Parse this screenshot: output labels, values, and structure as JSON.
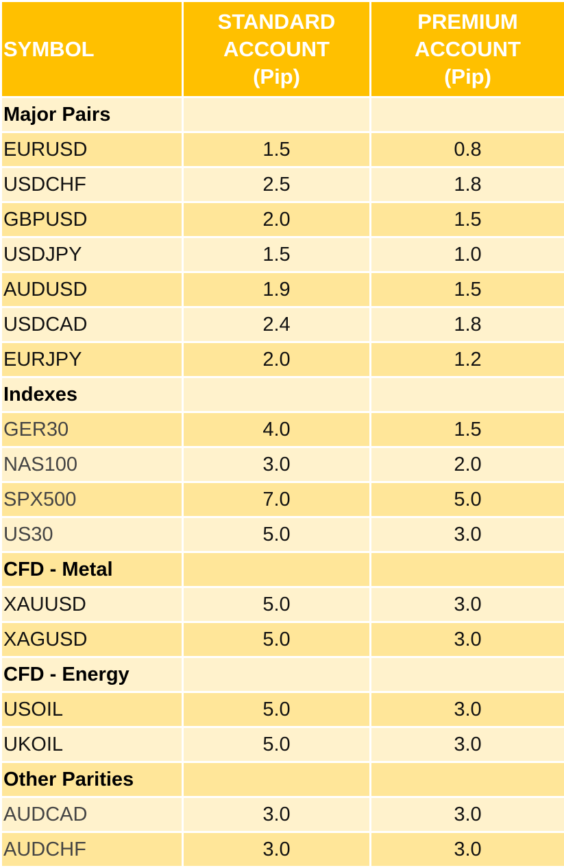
{
  "header": {
    "symbol": "SYMBOL",
    "standard": [
      "STANDARD",
      "ACCOUNT",
      "(Pip)"
    ],
    "premium": [
      "PREMIUM",
      "ACCOUNT",
      "(Pip)"
    ]
  },
  "rows": [
    {
      "type": "group",
      "label": "Major Pairs"
    },
    {
      "type": "item",
      "symbol": "EURUSD",
      "standard": "1.5",
      "premium": "0.8"
    },
    {
      "type": "item",
      "symbol": "USDCHF",
      "standard": "2.5",
      "premium": "1.8"
    },
    {
      "type": "item",
      "symbol": "GBPUSD",
      "standard": "2.0",
      "premium": "1.5"
    },
    {
      "type": "item",
      "symbol": "USDJPY",
      "standard": "1.5",
      "premium": "1.0"
    },
    {
      "type": "item",
      "symbol": "AUDUSD",
      "standard": "1.9",
      "premium": "1.5"
    },
    {
      "type": "item",
      "symbol": "USDCAD",
      "standard": "2.4",
      "premium": "1.8"
    },
    {
      "type": "item",
      "symbol": "EURJPY",
      "standard": "2.0",
      "premium": "1.2"
    },
    {
      "type": "group",
      "label": "Indexes"
    },
    {
      "type": "item",
      "symbol": "GER30",
      "standard": "4.0",
      "premium": "1.5",
      "dim": true
    },
    {
      "type": "item",
      "symbol": "NAS100",
      "standard": "3.0",
      "premium": "2.0",
      "dim": true
    },
    {
      "type": "item",
      "symbol": "SPX500",
      "standard": "7.0",
      "premium": "5.0",
      "dim": true
    },
    {
      "type": "item",
      "symbol": "US30",
      "standard": "5.0",
      "premium": "3.0",
      "dim": true
    },
    {
      "type": "group",
      "label": "CFD - Metal"
    },
    {
      "type": "item",
      "symbol": "XAUUSD",
      "standard": "5.0",
      "premium": "3.0"
    },
    {
      "type": "item",
      "symbol": "XAGUSD",
      "standard": "5.0",
      "premium": "3.0"
    },
    {
      "type": "group",
      "label": "CFD - Energy"
    },
    {
      "type": "item",
      "symbol": "USOIL",
      "standard": "5.0",
      "premium": "3.0"
    },
    {
      "type": "item",
      "symbol": "UKOIL",
      "standard": "5.0",
      "premium": "3.0"
    },
    {
      "type": "group",
      "label": "Other Parities"
    },
    {
      "type": "item",
      "symbol": "AUDCAD",
      "standard": "3.0",
      "premium": "3.0",
      "dim": true
    },
    {
      "type": "item",
      "symbol": "AUDCHF",
      "standard": "3.0",
      "premium": "3.0",
      "dim": true
    }
  ]
}
